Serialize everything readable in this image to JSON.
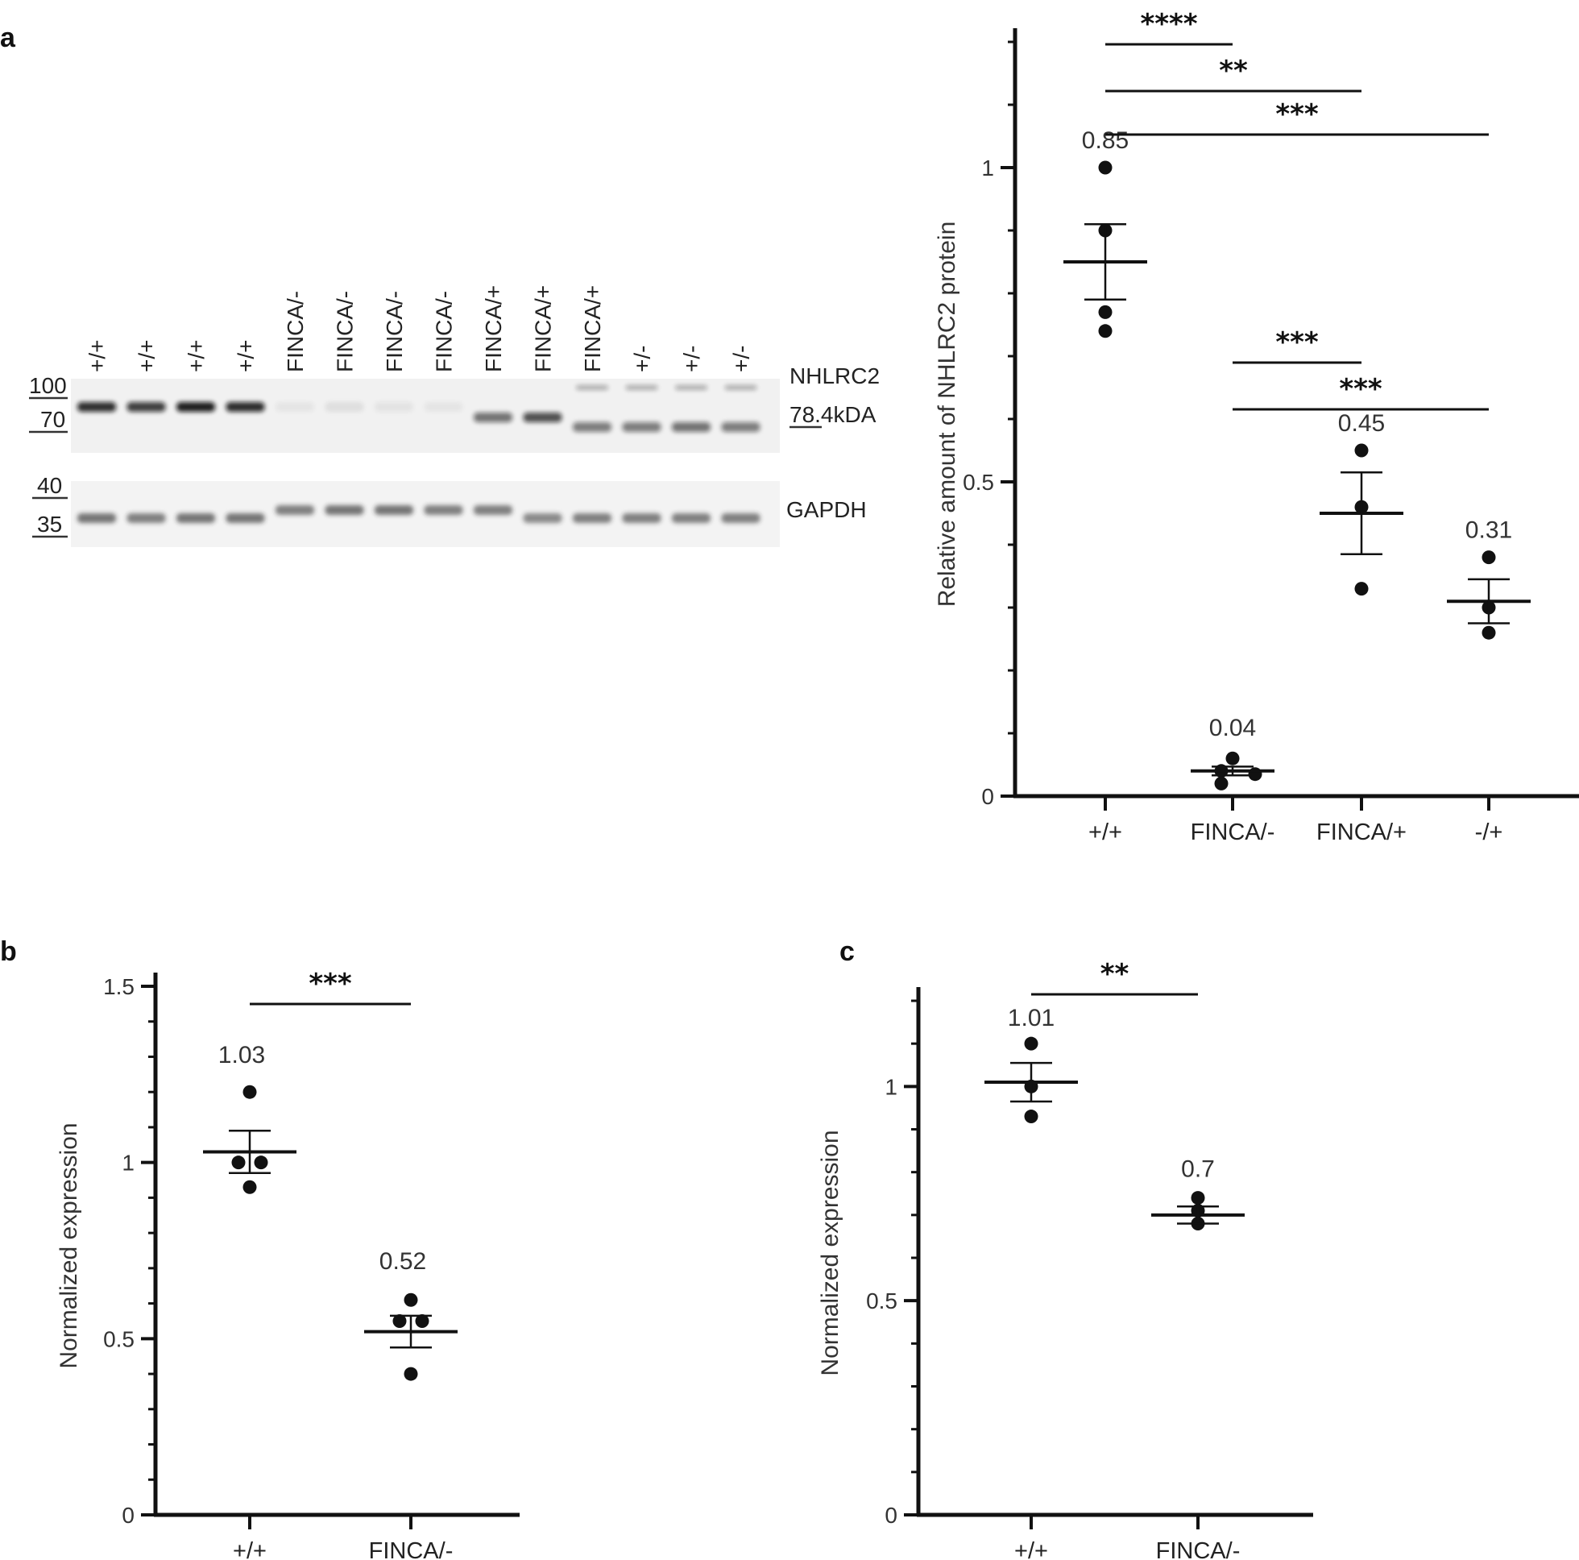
{
  "panel_labels": {
    "a": "a",
    "b": "b",
    "c": "c"
  },
  "western_blot": {
    "lane_labels": [
      "+/+",
      "+/+",
      "+/+",
      "+/+",
      "FINCA/-",
      "FINCA/-",
      "FINCA/-",
      "FINCA/-",
      "FINCA/+",
      "FINCA/+",
      "FINCA/+",
      "+/-",
      "+/-",
      "+/-"
    ],
    "markers_top": [
      "100",
      "70"
    ],
    "markers_bottom": [
      "40",
      "35"
    ],
    "protein_label": "NHLRC2",
    "size_label": "78.4kDA",
    "loading_label": "GAPDH",
    "nhlrc2_intensity": [
      0.85,
      0.78,
      0.92,
      0.86,
      0.05,
      0.08,
      0.06,
      0.05,
      0.55,
      0.7,
      0.5,
      0.5,
      0.55,
      0.5
    ],
    "gapdh_intensity": [
      0.6,
      0.55,
      0.6,
      0.6,
      0.55,
      0.6,
      0.6,
      0.55,
      0.55,
      0.5,
      0.55,
      0.55,
      0.55,
      0.55
    ]
  },
  "chart_data": [
    {
      "id": "a",
      "type": "scatter",
      "title": "",
      "ylabel": "Relative amount of NHLRC2 protein",
      "xlabel": "",
      "categories": [
        "+/+",
        "FINCA/-",
        "FINCA/+",
        "-/+"
      ],
      "ylim": [
        0,
        1.2
      ],
      "yticks": [
        0,
        0.5,
        1
      ],
      "ytick_labels": [
        "0",
        "0.5",
        "1"
      ],
      "minor_step": 0.1,
      "series": [
        {
          "name": "+/+",
          "points": [
            1.0,
            0.9,
            0.77,
            0.74
          ],
          "mean": 0.85,
          "sem": 0.06,
          "mean_label": "0.85"
        },
        {
          "name": "FINCA/-",
          "points": [
            0.06,
            0.04,
            0.02,
            0.035
          ],
          "mean": 0.04,
          "sem": 0.007,
          "mean_label": "0.04"
        },
        {
          "name": "FINCA/+",
          "points": [
            0.55,
            0.46,
            0.33
          ],
          "mean": 0.45,
          "sem": 0.065,
          "mean_label": "0.45"
        },
        {
          "name": "-/+",
          "points": [
            0.38,
            0.3,
            0.26
          ],
          "mean": 0.31,
          "sem": 0.035,
          "mean_label": "0.31"
        }
      ],
      "significance": [
        {
          "from": 0,
          "to": 1,
          "y": 1.2,
          "label": "****"
        },
        {
          "from": 0,
          "to": 2,
          "y": 1.12,
          "label": "**"
        },
        {
          "from": 0,
          "to": 3,
          "y": 1.05,
          "label": "***"
        },
        {
          "from": 1,
          "to": 2,
          "y": 0.7,
          "label": "***"
        },
        {
          "from": 1,
          "to": 3,
          "y": 0.615,
          "label": "***"
        }
      ]
    },
    {
      "id": "b",
      "type": "scatter",
      "title": "",
      "ylabel": "Normalized expression",
      "xlabel": "",
      "categories": [
        "+/+",
        "FINCA/-"
      ],
      "ylim": [
        0,
        1.5
      ],
      "yticks": [
        0,
        0.5,
        1,
        1.5
      ],
      "ytick_labels": [
        "0",
        "0.5",
        "1",
        "1.5"
      ],
      "minor_step": 0.1,
      "series": [
        {
          "name": "+/+",
          "points": [
            1.2,
            1.0,
            1.0,
            0.93
          ],
          "mean": 1.03,
          "sem": 0.06,
          "mean_label": "1.03"
        },
        {
          "name": "FINCA/-",
          "points": [
            0.61,
            0.55,
            0.55,
            0.4
          ],
          "mean": 0.52,
          "sem": 0.045,
          "mean_label": "0.52"
        }
      ],
      "significance": [
        {
          "from": 0,
          "to": 1,
          "y": 1.48,
          "label": "***"
        }
      ]
    },
    {
      "id": "c",
      "type": "scatter",
      "title": "",
      "ylabel": "Normalized expression",
      "xlabel": "",
      "categories": [
        "+/+",
        "FINCA/-"
      ],
      "ylim": [
        0,
        1.2
      ],
      "yticks": [
        0,
        0.5,
        1
      ],
      "ytick_labels": [
        "0",
        "0.5",
        "1"
      ],
      "minor_step": 0.1,
      "series": [
        {
          "name": "+/+",
          "points": [
            1.1,
            1.0,
            0.93
          ],
          "mean": 1.01,
          "sem": 0.045,
          "mean_label": "1.01"
        },
        {
          "name": "FINCA/-",
          "points": [
            0.74,
            0.71,
            0.68
          ],
          "mean": 0.7,
          "sem": 0.02,
          "mean_label": "0.7"
        }
      ],
      "significance": [
        {
          "from": 0,
          "to": 1,
          "y": 1.2,
          "label": "**"
        }
      ]
    }
  ]
}
